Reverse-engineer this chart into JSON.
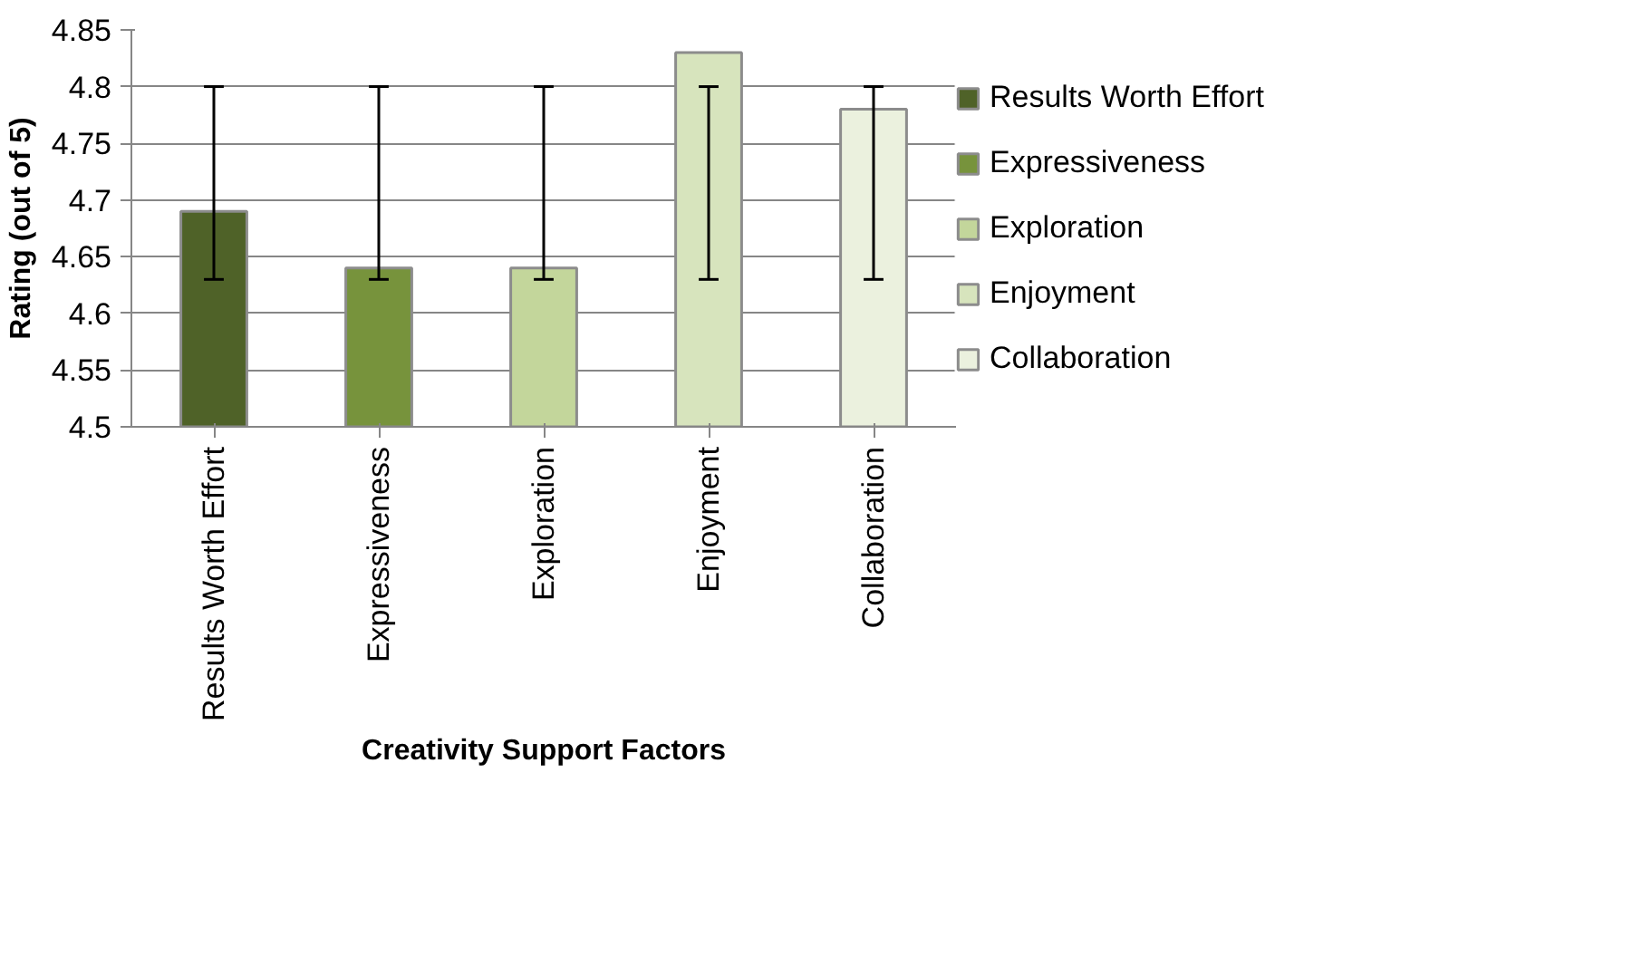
{
  "chart_data": {
    "type": "bar",
    "xlabel": "Creativity Support Factors",
    "ylabel": "Rating (out of 5)",
    "categories": [
      "Results Worth Effort",
      "Expressiveness",
      "Exploration",
      "Enjoyment",
      "Collaboration"
    ],
    "series": [
      {
        "name": "Results Worth Effort",
        "color": "#4f6228",
        "values": [
          4.69,
          null,
          null,
          null,
          null
        ],
        "errors": [
          [
            4.63,
            4.8
          ],
          null,
          null,
          null,
          null
        ]
      },
      {
        "name": "Expressiveness",
        "color": "#77933c",
        "values": [
          null,
          4.64,
          null,
          null,
          null
        ],
        "errors": [
          null,
          [
            4.63,
            4.8
          ],
          null,
          null,
          null
        ]
      },
      {
        "name": "Exploration",
        "color": "#c3d69b",
        "values": [
          null,
          null,
          4.64,
          null,
          null
        ],
        "errors": [
          null,
          null,
          [
            4.63,
            4.8
          ],
          null,
          null
        ]
      },
      {
        "name": "Enjoyment",
        "color": "#d7e4bd",
        "values": [
          null,
          null,
          null,
          4.83,
          null
        ],
        "errors": [
          null,
          null,
          null,
          [
            4.63,
            4.8
          ],
          null
        ]
      },
      {
        "name": "Collaboration",
        "color": "#ebf1de",
        "values": [
          null,
          null,
          null,
          null,
          4.78
        ],
        "errors": [
          null,
          null,
          null,
          null,
          [
            4.63,
            4.8
          ]
        ]
      }
    ],
    "ylim": [
      4.5,
      4.85
    ],
    "yticks": [
      4.5,
      4.55,
      4.6,
      4.65,
      4.7,
      4.75,
      4.8,
      4.85
    ],
    "grid": "y",
    "legend": "right"
  }
}
